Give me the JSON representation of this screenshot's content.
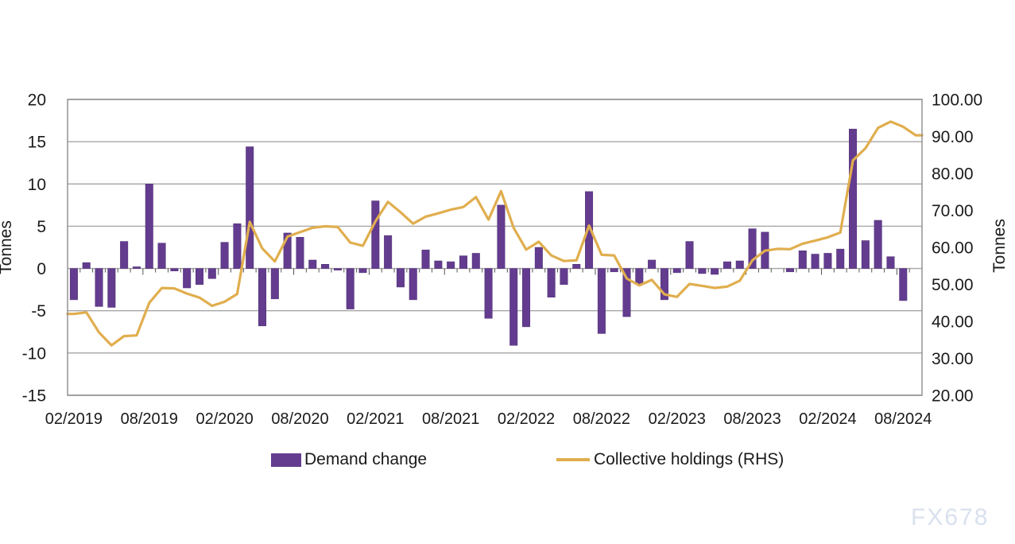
{
  "watermark": "FX678",
  "left_axis": {
    "title": "Tonnes",
    "ticks": [
      "20",
      "15",
      "10",
      "5",
      "0",
      "-5",
      "-10",
      "-15"
    ],
    "ylim": [
      -15,
      20
    ]
  },
  "right_axis": {
    "title": "Tonnes",
    "ticks": [
      "100.00",
      "90.00",
      "80.00",
      "70.00",
      "60.00",
      "50.00",
      "40.00",
      "30.00",
      "20.00"
    ],
    "ylim": [
      20,
      100
    ]
  },
  "legend": [
    {
      "label": "Demand change",
      "color": "#633c8f",
      "type": "bar"
    },
    {
      "label": "Collective holdings (RHS)",
      "color": "#e0ae4e",
      "type": "line"
    }
  ],
  "colors": {
    "bar": "#633c8f",
    "bar_edge": "#4f2f73",
    "line": "#e0ae4e",
    "grid": "#a6a6a6",
    "border": "#8c8c8c",
    "tick": "#555555",
    "text": "#1a1a1a",
    "watermark": "#d9e1ee"
  },
  "chart_data": {
    "type": "bar+line combo, dual axis",
    "title": "",
    "xlabel": "",
    "ylabel_left": "Tonnes",
    "ylabel_right": "Tonnes",
    "left_ylim": [
      -15,
      20
    ],
    "right_ylim": [
      20,
      100
    ],
    "grid": "horizontal",
    "legend_position": "bottom",
    "x_tick_labels": [
      "02/2019",
      "08/2019",
      "02/2020",
      "08/2020",
      "02/2021",
      "08/2021",
      "02/2022",
      "08/2022",
      "02/2023",
      "08/2023",
      "02/2024",
      "08/2024"
    ],
    "x_tick_every_n_slots": 6,
    "months": [
      "02/2019",
      "03/2019",
      "04/2019",
      "05/2019",
      "06/2019",
      "07/2019",
      "08/2019",
      "09/2019",
      "10/2019",
      "11/2019",
      "12/2019",
      "01/2020",
      "02/2020",
      "03/2020",
      "04/2020",
      "05/2020",
      "06/2020",
      "07/2020",
      "08/2020",
      "09/2020",
      "10/2020",
      "11/2020",
      "12/2020",
      "01/2021",
      "02/2021",
      "03/2021",
      "04/2021",
      "05/2021",
      "06/2021",
      "07/2021",
      "08/2021",
      "09/2021",
      "10/2021",
      "11/2021",
      "12/2021",
      "01/2022",
      "02/2022",
      "03/2022",
      "04/2022",
      "05/2022",
      "06/2022",
      "07/2022",
      "08/2022",
      "09/2022",
      "10/2022",
      "11/2022",
      "12/2022",
      "01/2023",
      "02/2023",
      "03/2023",
      "04/2023",
      "05/2023",
      "06/2023",
      "07/2023",
      "08/2023",
      "09/2023",
      "10/2023",
      "11/2023",
      "12/2023",
      "01/2024",
      "02/2024",
      "03/2024",
      "04/2024",
      "05/2024",
      "06/2024",
      "07/2024",
      "08/2024",
      "09/2024"
    ],
    "series": [
      {
        "name": "Demand change",
        "type": "bar",
        "axis": "left",
        "color": "#633c8f",
        "values": [
          -3.7,
          0.7,
          -4.5,
          -4.6,
          3.2,
          0.2,
          10.0,
          3.0,
          -0.3,
          -2.3,
          -1.9,
          -1.2,
          3.1,
          5.3,
          14.4,
          -6.8,
          -3.6,
          4.2,
          3.7,
          1.0,
          0.5,
          -0.2,
          -4.8,
          -0.5,
          8.0,
          3.9,
          -2.2,
          -3.7,
          2.2,
          0.9,
          0.8,
          1.5,
          1.8,
          -5.9,
          7.5,
          -9.1,
          -6.9,
          2.5,
          -3.4,
          -1.9,
          0.5,
          9.1,
          -7.7,
          -0.4,
          -5.7,
          -1.9,
          1.0,
          -3.7,
          -0.5,
          3.2,
          -0.6,
          -0.7,
          0.8,
          0.9,
          4.7,
          4.3,
          0.0,
          -0.4,
          2.1,
          1.7,
          1.8,
          2.3,
          16.5,
          3.3,
          5.7,
          1.4,
          -3.8,
          null
        ]
      },
      {
        "name": "Collective holdings (RHS)",
        "type": "line",
        "axis": "right",
        "color": "#e0ae4e",
        "values": [
          42.0,
          42.4,
          37.0,
          33.5,
          36.0,
          36.2,
          45.0,
          49.0,
          48.9,
          47.5,
          46.4,
          44.2,
          45.3,
          47.4,
          66.9,
          59.7,
          56.2,
          62.9,
          64.1,
          65.3,
          65.7,
          65.5,
          61.3,
          60.4,
          67.0,
          72.3,
          69.5,
          66.4,
          68.3,
          69.2,
          70.2,
          70.9,
          73.6,
          67.5,
          75.2,
          65.3,
          59.4,
          61.5,
          57.8,
          56.3,
          56.5,
          65.9,
          58.0,
          57.8,
          51.6,
          49.7,
          51.2,
          47.3,
          46.6,
          50.1,
          49.6,
          49.0,
          49.4,
          51.0,
          56.5,
          59.1,
          59.6,
          59.5,
          61.0,
          61.8,
          62.7,
          64.0,
          83.5,
          86.8,
          92.3,
          94.0,
          92.6,
          90.3
        ]
      }
    ]
  }
}
